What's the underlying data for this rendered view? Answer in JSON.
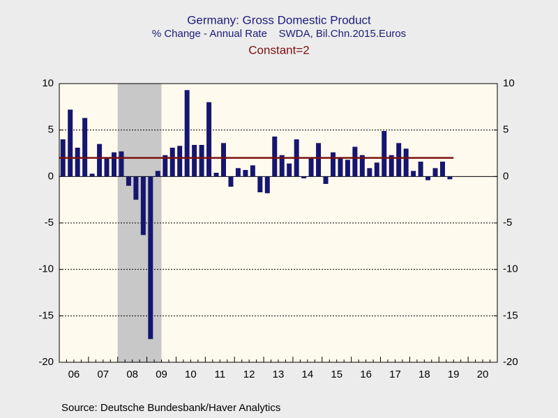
{
  "chart_data": {
    "type": "bar",
    "title": "Germany: Gross Domestic Product",
    "subtitle": "% Change - Annual Rate    SWDA, Bil.Chn.2015.Euros",
    "constant_label": "Constant=2",
    "constant": 2,
    "source": "Source:  Deutsche Bundesbank/Haver Analytics",
    "xticks": [
      "06",
      "07",
      "08",
      "09",
      "10",
      "11",
      "12",
      "13",
      "14",
      "15",
      "16",
      "17",
      "18",
      "19",
      "20"
    ],
    "values": [
      4.0,
      7.2,
      3.1,
      6.3,
      0.3,
      3.5,
      2.0,
      2.6,
      2.7,
      -1.0,
      -2.5,
      -6.3,
      -17.5,
      0.6,
      2.3,
      3.1,
      3.3,
      9.3,
      3.4,
      3.4,
      8.0,
      0.4,
      3.6,
      -1.1,
      0.9,
      0.7,
      1.2,
      -1.7,
      -1.8,
      4.3,
      2.3,
      1.4,
      4.0,
      -0.2,
      2.0,
      3.6,
      -0.8,
      2.6,
      2.0,
      1.8,
      3.2,
      2.3,
      0.9,
      1.5,
      4.9,
      2.3,
      3.6,
      3.0,
      0.6,
      1.6,
      -0.4,
      0.9,
      1.6,
      -0.3
    ],
    "color": "#161670",
    "constant_color": "#7a1010",
    "ylim": [
      -20,
      10
    ],
    "yticks": [
      -20,
      -15,
      -10,
      -5,
      0,
      5,
      10
    ],
    "grid": true
  }
}
